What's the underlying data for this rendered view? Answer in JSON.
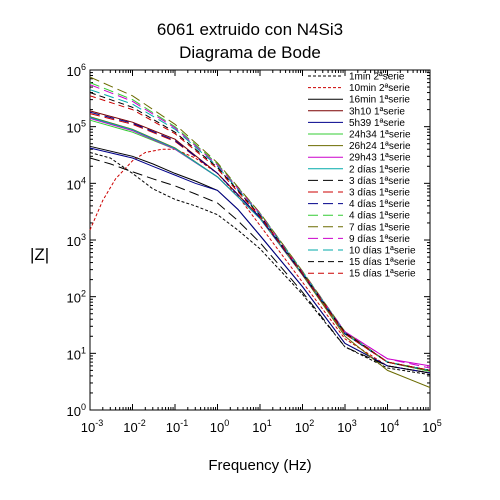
{
  "chart_data": {
    "type": "line",
    "title": "6061 extruido con N4Si3",
    "subtitle": "Diagrama de Bode",
    "xlabel": "Frequency (Hz)",
    "ylabel": "|Z|",
    "xscale": "log",
    "yscale": "log",
    "xlim": [
      0.001,
      100000
    ],
    "ylim": [
      1,
      1000000
    ],
    "x_ticks": [
      {
        "v": 0.001,
        "base": "10",
        "exp": "-3"
      },
      {
        "v": 0.01,
        "base": "10",
        "exp": "-2"
      },
      {
        "v": 0.1,
        "base": "10",
        "exp": "-1"
      },
      {
        "v": 1,
        "base": "10",
        "exp": "0"
      },
      {
        "v": 10,
        "base": "10",
        "exp": "1"
      },
      {
        "v": 100,
        "base": "10",
        "exp": "2"
      },
      {
        "v": 1000,
        "base": "10",
        "exp": "3"
      },
      {
        "v": 10000,
        "base": "10",
        "exp": "4"
      },
      {
        "v": 100000,
        "base": "10",
        "exp": "5"
      }
    ],
    "y_ticks": [
      {
        "v": 1,
        "base": "10",
        "exp": "0"
      },
      {
        "v": 10,
        "base": "10",
        "exp": "1"
      },
      {
        "v": 100,
        "base": "10",
        "exp": "2"
      },
      {
        "v": 1000,
        "base": "10",
        "exp": "3"
      },
      {
        "v": 10000,
        "base": "10",
        "exp": "4"
      },
      {
        "v": 100000,
        "base": "10",
        "exp": "5"
      },
      {
        "v": 1000000,
        "base": "10",
        "exp": "6"
      }
    ],
    "legend_position": "top-right",
    "grid": false,
    "series": [
      {
        "name": "1min 2ªserie",
        "color": "#000000",
        "dash": "dotted",
        "x": [
          0.001,
          0.003,
          0.01,
          0.03,
          0.1,
          0.3,
          1,
          3,
          10,
          100,
          1000,
          10000,
          100000
        ],
        "y": [
          35000,
          28000,
          15000,
          8000,
          5200,
          4000,
          2800,
          1500,
          700,
          110,
          13,
          5.5,
          4.2
        ]
      },
      {
        "name": "10min 2ªserie",
        "color": "#cc0000",
        "dash": "dotted",
        "x": [
          0.001,
          0.002,
          0.004,
          0.01,
          0.02,
          0.05,
          0.1,
          0.3,
          1,
          3,
          10,
          100,
          1000,
          10000,
          100000
        ],
        "y": [
          1500,
          5000,
          12000,
          25000,
          35000,
          40000,
          40000,
          28000,
          15000,
          6000,
          1800,
          180,
          18,
          6,
          4.5
        ]
      },
      {
        "name": "16min 1ªserie",
        "color": "#000000",
        "dash": "solid",
        "x": [
          0.001,
          0.01,
          0.03,
          0.1,
          0.3,
          1,
          3,
          10,
          100,
          1000,
          10000,
          100000
        ],
        "y": [
          45000,
          30000,
          22000,
          15000,
          11000,
          7500,
          3500,
          1200,
          150,
          15,
          6,
          4.5
        ]
      },
      {
        "name": "3h10 1ªserie",
        "color": "#7b0000",
        "dash": "solid",
        "x": [
          0.001,
          0.01,
          0.1,
          1,
          10,
          100,
          1000,
          10000,
          100000
        ],
        "y": [
          190000,
          120000,
          60000,
          15000,
          2500,
          250,
          22,
          7,
          4.8
        ]
      },
      {
        "name": "5h39 1ªserie",
        "color": "#00008b",
        "dash": "solid",
        "x": [
          0.001,
          0.01,
          0.03,
          0.1,
          0.3,
          1,
          3,
          10,
          100,
          1000,
          10000,
          100000
        ],
        "y": [
          42000,
          28000,
          20000,
          14000,
          10000,
          7500,
          3500,
          1200,
          150,
          15,
          6,
          4.5
        ]
      },
      {
        "name": "24h34 1ªserie",
        "color": "#33cc33",
        "dash": "solid",
        "x": [
          0.001,
          0.01,
          0.1,
          1,
          10,
          100,
          1000,
          10000,
          100000
        ],
        "y": [
          130000,
          80000,
          40000,
          13000,
          2400,
          250,
          22,
          7,
          4.8
        ]
      },
      {
        "name": "26h24 1ªserie",
        "color": "#6b6b00",
        "dash": "solid",
        "x": [
          0.001,
          0.01,
          0.1,
          1,
          10,
          100,
          1000,
          10000,
          100000
        ],
        "y": [
          150000,
          90000,
          42000,
          13000,
          2400,
          240,
          20,
          5,
          2.5
        ]
      },
      {
        "name": "29h43 1ªserie",
        "color": "#cc00cc",
        "dash": "solid",
        "x": [
          0.001,
          0.01,
          0.1,
          1,
          10,
          100,
          1000,
          10000,
          100000
        ],
        "y": [
          140000,
          85000,
          40000,
          13000,
          2400,
          250,
          24,
          8,
          6
        ]
      },
      {
        "name": "2 días 1ªserie",
        "color": "#00aaaa",
        "dash": "solid",
        "x": [
          0.001,
          0.01,
          0.1,
          1,
          10,
          100,
          1000,
          10000,
          100000
        ],
        "y": [
          145000,
          88000,
          41000,
          13000,
          2400,
          250,
          22,
          7,
          5
        ]
      },
      {
        "name": "3 días 1ªserie",
        "color": "#000000",
        "dash": "longdash",
        "x": [
          0.001,
          0.003,
          0.01,
          0.03,
          0.1,
          0.3,
          1,
          3,
          10,
          100,
          1000,
          10000,
          100000
        ],
        "y": [
          28000,
          22000,
          16000,
          12000,
          9000,
          6500,
          4500,
          2200,
          900,
          120,
          13,
          6,
          4.5
        ]
      },
      {
        "name": "3 días 1ªserie",
        "color": "#cc0000",
        "dash": "longdash",
        "x": [
          0.001,
          0.01,
          0.1,
          1,
          10,
          100,
          1000,
          10000,
          100000
        ],
        "y": [
          170000,
          110000,
          55000,
          15000,
          2500,
          250,
          22,
          7,
          5
        ]
      },
      {
        "name": "4 días 1ªserie",
        "color": "#00008b",
        "dash": "longdash",
        "x": [
          0.001,
          0.01,
          0.1,
          1,
          10,
          100,
          1000,
          10000,
          100000
        ],
        "y": [
          180000,
          115000,
          57000,
          15000,
          2500,
          250,
          22,
          7,
          5
        ]
      },
      {
        "name": "4 días 1ªserie",
        "color": "#33cc33",
        "dash": "longdash",
        "x": [
          0.001,
          0.01,
          0.1,
          1,
          10,
          100,
          1000,
          10000,
          100000
        ],
        "y": [
          600000,
          300000,
          100000,
          22000,
          3000,
          280,
          24,
          7,
          5
        ]
      },
      {
        "name": "7 días 1ªserie",
        "color": "#6b6b00",
        "dash": "longdash",
        "x": [
          0.001,
          0.01,
          0.1,
          1,
          10,
          100,
          1000,
          10000,
          100000
        ],
        "y": [
          750000,
          350000,
          110000,
          23000,
          3000,
          280,
          24,
          7,
          5
        ]
      },
      {
        "name": "9 días 1ªserie",
        "color": "#cc00cc",
        "dash": "longdash",
        "x": [
          0.001,
          0.01,
          0.1,
          1,
          10,
          100,
          1000,
          10000,
          100000
        ],
        "y": [
          550000,
          280000,
          95000,
          21000,
          2900,
          270,
          24,
          8,
          5.5
        ]
      },
      {
        "name": "10 días 1ªserie",
        "color": "#00aaaa",
        "dash": "longdash",
        "x": [
          0.001,
          0.01,
          0.1,
          1,
          10,
          100,
          1000,
          10000,
          100000
        ],
        "y": [
          450000,
          250000,
          90000,
          20000,
          2800,
          270,
          23,
          7,
          5
        ]
      },
      {
        "name": "15 días 1ªserie",
        "color": "#000000",
        "dash": "dashed",
        "x": [
          0.001,
          0.01,
          0.1,
          1,
          10,
          100,
          1000,
          10000,
          100000
        ],
        "y": [
          400000,
          220000,
          80000,
          19000,
          2700,
          260,
          23,
          7,
          5
        ]
      },
      {
        "name": "15 días 1ªserie",
        "color": "#cc0000",
        "dash": "dashed",
        "x": [
          0.001,
          0.01,
          0.1,
          1,
          10,
          100,
          1000,
          10000,
          100000
        ],
        "y": [
          350000,
          200000,
          75000,
          18000,
          2600,
          260,
          22,
          7,
          5
        ]
      }
    ]
  }
}
